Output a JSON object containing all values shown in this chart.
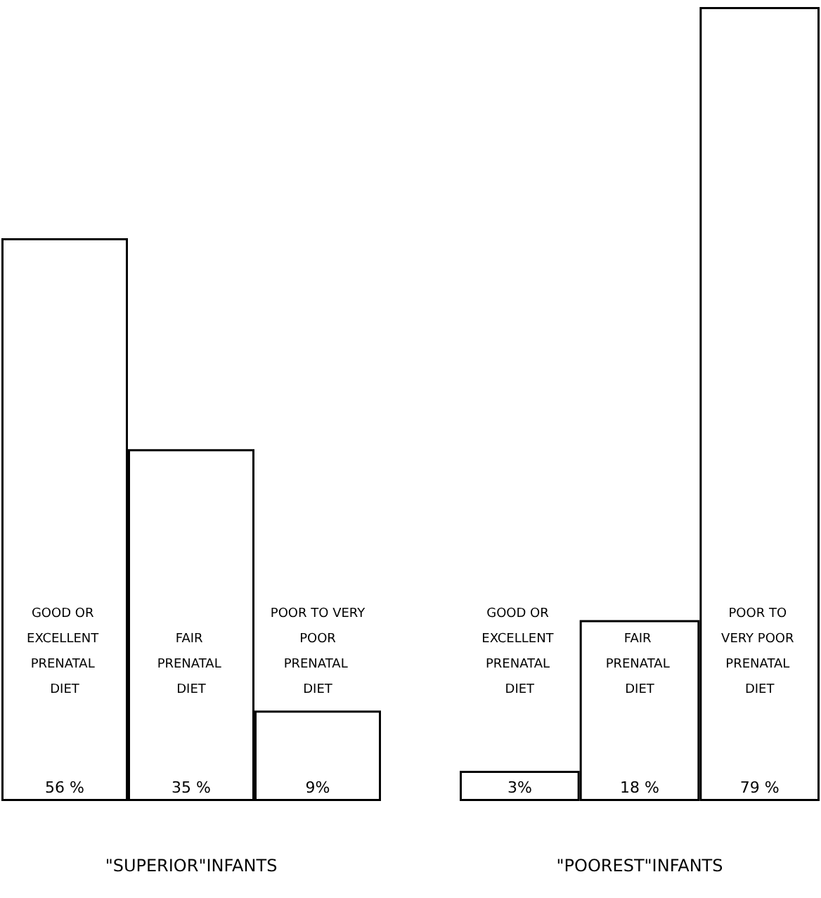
{
  "chart_data": [
    {
      "type": "bar",
      "xlabel": "\"SUPERIOR\"INFANTS",
      "categories": [
        "GOOD OR EXCELLENT PRENATAL DIET",
        "FAIR PRENATAL DIET",
        "POOR TO VERY POOR PRENATAL DIET"
      ],
      "values": [
        56,
        35,
        9
      ],
      "value_labels": [
        "56 %",
        "35 %",
        "9%"
      ],
      "color": "#ffffff",
      "tick_labels": "x"
    },
    {
      "type": "bar",
      "xlabel": "\"POOREST\"INFANTS",
      "categories": [
        "GOOD OR EXCELLENT PRENATAL DIET",
        "FAIR PRENATAL DIET",
        "POOR TO VERY POOR PRENATAL DIET"
      ],
      "values": [
        3,
        18,
        79
      ],
      "value_labels": [
        "3%",
        "18 %",
        "79 %"
      ],
      "color": "#ffffff",
      "tick_labels": "x"
    }
  ]
}
